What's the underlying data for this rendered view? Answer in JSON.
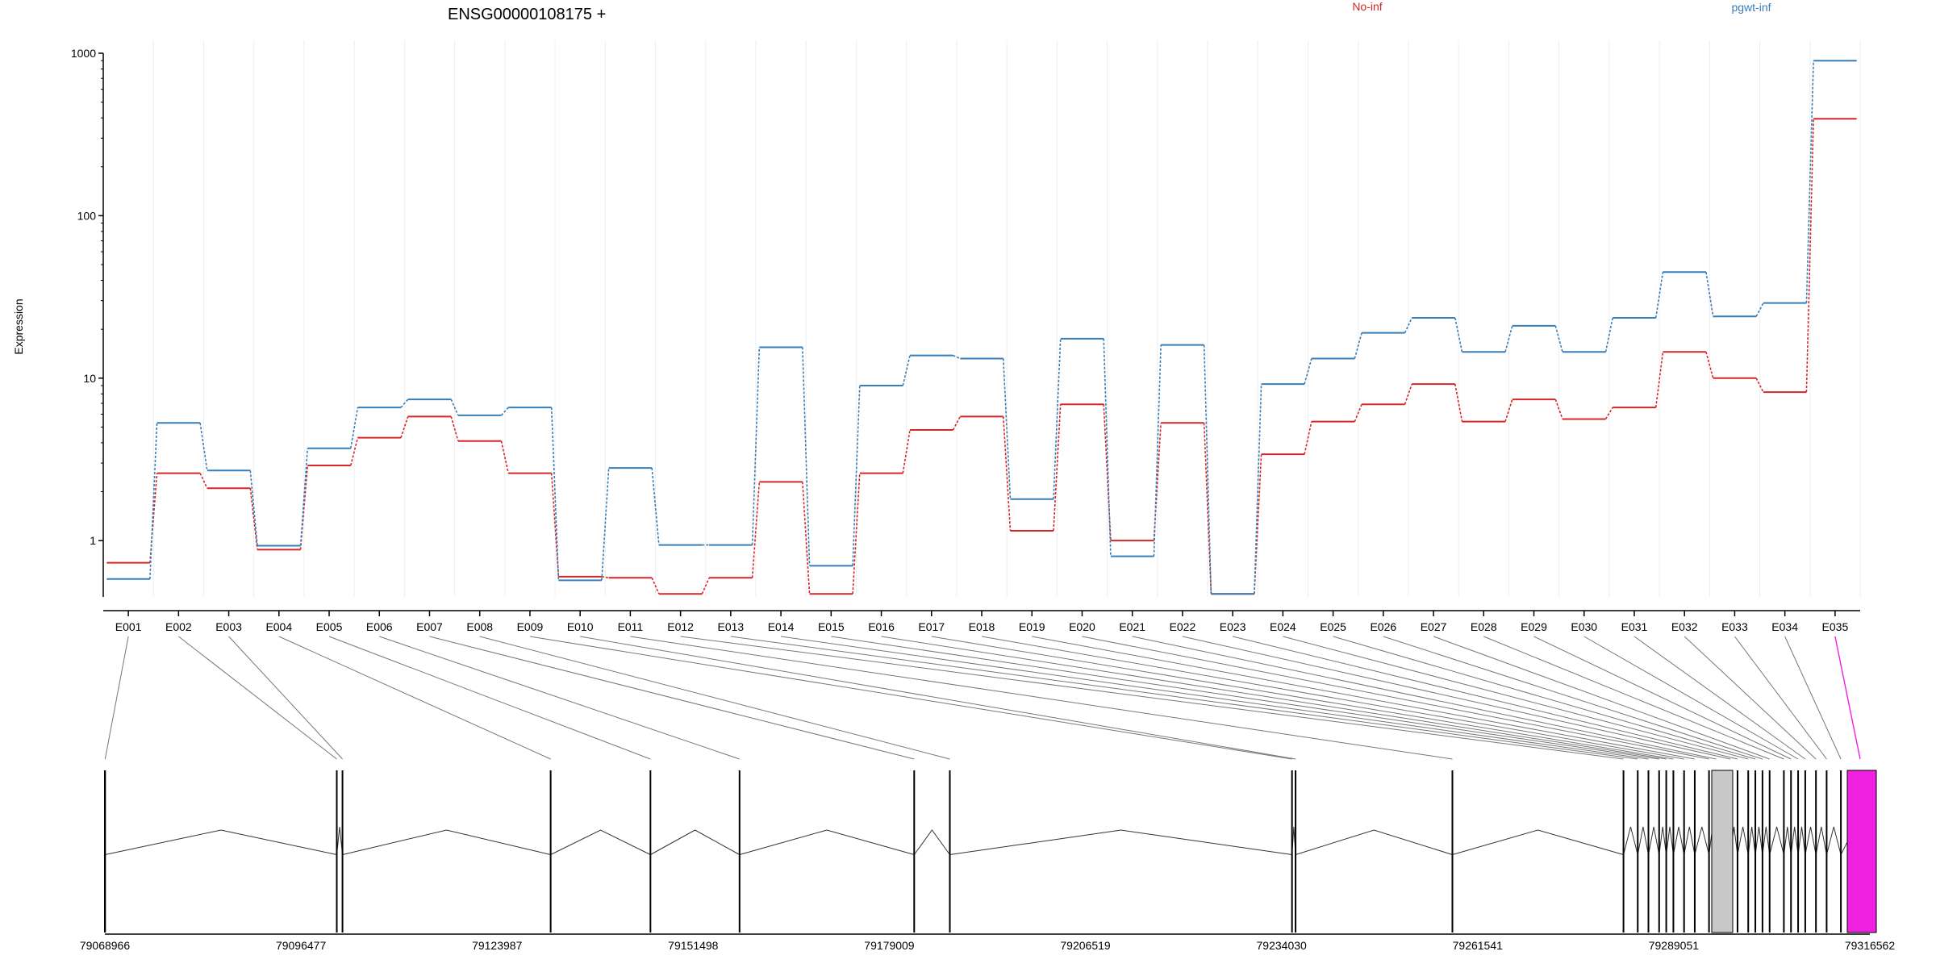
{
  "chart_data": {
    "type": "line",
    "title": "ENSG00000108175 +",
    "ylabel": "Expression",
    "y_scale": "log",
    "ylim": [
      0.45,
      1000
    ],
    "yticks": [
      "1000",
      "100",
      "10",
      "1"
    ],
    "categories": [
      "E001",
      "E002",
      "E003",
      "E004",
      "E005",
      "E006",
      "E007",
      "E008",
      "E009",
      "E010",
      "E011",
      "E012",
      "E013",
      "E014",
      "E015",
      "E016",
      "E017",
      "E018",
      "E019",
      "E020",
      "E021",
      "E022",
      "E023",
      "E024",
      "E025",
      "E026",
      "E027",
      "E028",
      "E029",
      "E030",
      "E031",
      "E032",
      "E033",
      "E034",
      "E035"
    ],
    "series": [
      {
        "name": "No-inf",
        "color": "#d62728",
        "values": [
          0.73,
          2.6,
          2.1,
          0.88,
          2.9,
          4.3,
          5.8,
          4.1,
          2.6,
          0.6,
          0.59,
          0.47,
          0.59,
          2.3,
          0.47,
          2.6,
          4.8,
          5.8,
          1.15,
          6.9,
          1.0,
          5.3,
          0.47,
          3.4,
          5.4,
          6.9,
          9.2,
          5.4,
          7.4,
          5.6,
          6.6,
          14.5,
          10.0,
          8.2,
          395
        ]
      },
      {
        "name": "pgwt-inf",
        "color": "#377eb8",
        "values": [
          0.58,
          5.3,
          2.7,
          0.93,
          3.7,
          6.6,
          7.4,
          5.9,
          6.6,
          0.57,
          2.8,
          0.94,
          0.94,
          15.5,
          0.7,
          9.0,
          13.8,
          13.2,
          1.8,
          17.5,
          0.8,
          16.0,
          0.47,
          9.2,
          13.2,
          19.0,
          23.5,
          14.5,
          21.0,
          14.5,
          23.5,
          45,
          24,
          29,
          900
        ]
      }
    ],
    "gene_model": {
      "coordinate_labels": [
        "79068966",
        "79096477",
        "79123987",
        "79151498",
        "79179009",
        "79206519",
        "79234030",
        "79261541",
        "79289051",
        "79316562"
      ],
      "highlighted_exon": "E035",
      "highlight_color": "#f020e0"
    }
  }
}
